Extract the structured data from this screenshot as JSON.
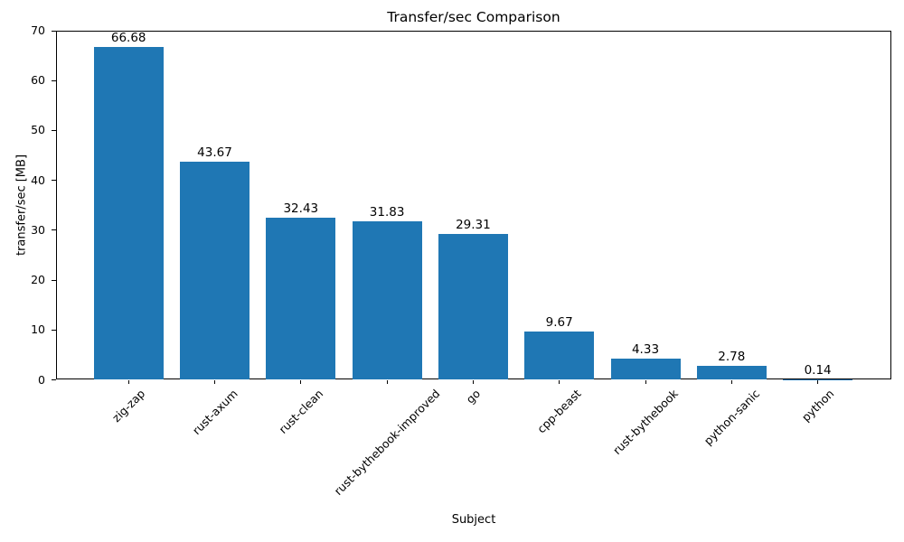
{
  "chart_data": {
    "type": "bar",
    "title": "Transfer/sec Comparison",
    "xlabel": "Subject",
    "ylabel": "transfer/sec [MB]",
    "categories": [
      "zig-zap",
      "rust-axum",
      "rust-clean",
      "rust-bythebook-improved",
      "go",
      "cpp-beast",
      "rust-bythebook",
      "python-sanic",
      "python"
    ],
    "values": [
      66.68,
      43.67,
      32.43,
      31.83,
      29.31,
      9.67,
      4.33,
      2.78,
      0.14
    ],
    "value_labels": [
      "66.68",
      "43.67",
      "32.43",
      "31.83",
      "29.31",
      "9.67",
      "4.33",
      "2.78",
      "0.14"
    ],
    "ylim": [
      0,
      70
    ],
    "yticks": [
      0,
      10,
      20,
      30,
      40,
      50,
      60,
      70
    ],
    "x_tick_rotation_deg": 45,
    "bar_color": "#1f77b4",
    "text_color": "#000000",
    "background_color": "#ffffff",
    "grid": false,
    "legend": null
  }
}
